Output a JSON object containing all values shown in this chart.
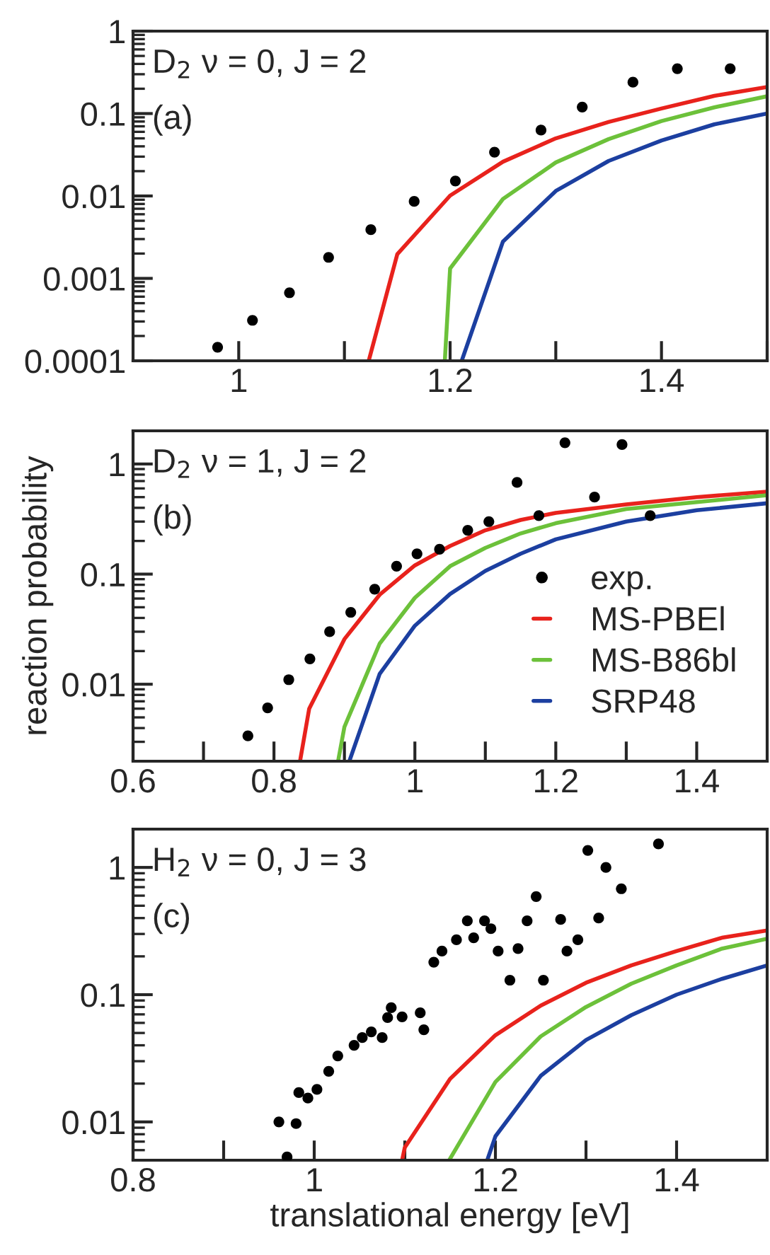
{
  "chart_data": [
    {
      "type": "scatter",
      "annotations": [
        "D$_{2}$ ν = 0, J = 2",
        "(a)"
      ],
      "log": "y",
      "xlim": [
        0.9,
        1.5
      ],
      "xticks": [
        1,
        {
          "value": 1.1,
          "label": null
        },
        1.2,
        {
          "value": 1.3,
          "label": null
        },
        1.4,
        {
          "value": 1.5,
          "label": null
        }
      ],
      "ylim": [
        0.0001,
        1
      ],
      "yticks": [
        0.0001,
        0.001,
        0.01,
        0.1,
        1
      ],
      "series": [
        {
          "marker": "circle",
          "color": "#000000",
          "x": [
            0.98,
            1.013,
            1.048,
            1.085,
            1.125,
            1.166,
            1.205,
            1.242,
            1.286,
            1.325,
            1.373,
            1.415,
            1.465
          ],
          "values": [
            0.000146,
            0.00031,
            0.00067,
            0.0018,
            0.0039,
            0.0086,
            0.0152,
            0.034,
            0.063,
            0.12,
            0.24,
            0.35,
            0.35
          ]
        },
        {
          "type": "line",
          "color": "#e8221c",
          "x": [
            1.123,
            1.15,
            1.2,
            1.25,
            1.3,
            1.35,
            1.4,
            1.45,
            1.5
          ],
          "values": [
            0.0001,
            0.00196,
            0.0101,
            0.026,
            0.05,
            0.079,
            0.115,
            0.164,
            0.21
          ]
        },
        {
          "type": "line",
          "color": "#6cc13a",
          "x": [
            1.195,
            1.2,
            1.25,
            1.3,
            1.35,
            1.4,
            1.45,
            1.5
          ],
          "values": [
            0.0001,
            0.00132,
            0.0092,
            0.0255,
            0.049,
            0.081,
            0.119,
            0.162
          ]
        },
        {
          "type": "line",
          "color": "#1c3fa0",
          "x": [
            1.211,
            1.25,
            1.3,
            1.35,
            1.4,
            1.45,
            1.5
          ],
          "values": [
            0.0001,
            0.0028,
            0.0115,
            0.0266,
            0.047,
            0.074,
            0.1
          ]
        }
      ]
    },
    {
      "type": "scatter",
      "annotations": [
        "D$_{2}$ ν = 1, J = 2",
        "(b)"
      ],
      "ylabel": "reaction probability",
      "log": "y",
      "legend": "center right",
      "xlim": [
        0.6,
        1.5
      ],
      "xticks": [
        0.6,
        {
          "value": 0.7,
          "label": null
        },
        0.8,
        {
          "value": 0.9,
          "label": null
        },
        1,
        {
          "value": 1.1,
          "label": null
        },
        1.2,
        {
          "value": 1.3,
          "label": null
        },
        1.4
      ],
      "ylim": [
        0.002,
        2
      ],
      "yticks": [
        0.01,
        0.1,
        1
      ],
      "series": [
        {
          "marker": "circle",
          "name": "exp.",
          "color": "#000000",
          "x": [
            0.763,
            0.791,
            0.821,
            0.851,
            0.879,
            0.909,
            0.943,
            0.974,
            1.003,
            1.035,
            1.075,
            1.105,
            1.145,
            1.176,
            1.213,
            1.255,
            1.294,
            1.334
          ],
          "values": [
            0.0034,
            0.0061,
            0.011,
            0.017,
            0.03,
            0.045,
            0.073,
            0.118,
            0.153,
            0.168,
            0.25,
            0.3,
            0.68,
            0.34,
            1.56,
            0.5,
            1.5,
            0.34
          ]
        },
        {
          "type": "line",
          "name": "MS-PBEl",
          "color": "#e8221c",
          "x": [
            0.837,
            0.85,
            0.9,
            0.95,
            1.0,
            1.05,
            1.1,
            1.15,
            1.2,
            1.3,
            1.4,
            1.5
          ],
          "values": [
            0.002,
            0.006,
            0.0257,
            0.065,
            0.12,
            0.18,
            0.25,
            0.31,
            0.36,
            0.43,
            0.5,
            0.56
          ]
        },
        {
          "type": "line",
          "name": "MS-B86bl",
          "color": "#6cc13a",
          "x": [
            0.891,
            0.9,
            0.95,
            1.0,
            1.05,
            1.1,
            1.15,
            1.2,
            1.3,
            1.4,
            1.5
          ],
          "values": [
            0.002,
            0.0041,
            0.0234,
            0.061,
            0.118,
            0.173,
            0.234,
            0.29,
            0.39,
            0.45,
            0.52
          ]
        },
        {
          "type": "line",
          "name": "SRP48",
          "color": "#1c3fa0",
          "x": [
            0.907,
            0.95,
            1.0,
            1.05,
            1.1,
            1.15,
            1.2,
            1.3,
            1.4,
            1.5
          ],
          "values": [
            0.002,
            0.0124,
            0.034,
            0.066,
            0.107,
            0.153,
            0.207,
            0.3,
            0.38,
            0.44
          ]
        }
      ]
    },
    {
      "type": "scatter",
      "annotations": [
        "H$_{2}$ ν = 0, J = 3",
        "(c)"
      ],
      "xlabel": "translational energy [eV]",
      "log": "y",
      "xlim": [
        0.8,
        1.5
      ],
      "xticks": [
        0.8,
        {
          "value": 0.9,
          "label": null
        },
        1,
        {
          "value": 1.1,
          "label": null
        },
        1.2,
        {
          "value": 1.3,
          "label": null
        },
        1.4
      ],
      "ylim": [
        0.005,
        2
      ],
      "yticks": [
        0.01,
        0.1,
        1
      ],
      "series": [
        {
          "marker": "circle",
          "color": "#000000",
          "x": [
            0.961,
            0.97,
            0.98,
            0.983,
            0.993,
            1.003,
            1.016,
            1.026,
            1.044,
            1.053,
            1.063,
            1.075,
            1.081,
            1.085,
            1.097,
            1.117,
            1.121,
            1.132,
            1.141,
            1.157,
            1.169,
            1.176,
            1.188,
            1.195,
            1.203,
            1.216,
            1.225,
            1.235,
            1.245,
            1.253,
            1.272,
            1.279,
            1.291,
            1.302,
            1.314,
            1.322,
            1.339,
            1.38
          ],
          "values": [
            0.01,
            0.0053,
            0.0097,
            0.017,
            0.0154,
            0.018,
            0.025,
            0.033,
            0.04,
            0.046,
            0.051,
            0.046,
            0.066,
            0.079,
            0.067,
            0.072,
            0.053,
            0.18,
            0.22,
            0.27,
            0.38,
            0.28,
            0.38,
            0.33,
            0.22,
            0.13,
            0.23,
            0.38,
            0.59,
            0.13,
            0.39,
            0.22,
            0.27,
            1.36,
            0.4,
            1.0,
            0.68,
            1.53
          ]
        },
        {
          "type": "line",
          "color": "#e8221c",
          "x": [
            1.097,
            1.1,
            1.15,
            1.2,
            1.25,
            1.3,
            1.35,
            1.4,
            1.45,
            1.5
          ],
          "values": [
            0.005,
            0.0063,
            0.0218,
            0.048,
            0.082,
            0.124,
            0.17,
            0.22,
            0.28,
            0.32
          ]
        },
        {
          "type": "line",
          "color": "#6cc13a",
          "x": [
            1.149,
            1.2,
            1.25,
            1.3,
            1.35,
            1.4,
            1.45,
            1.5
          ],
          "values": [
            0.005,
            0.0206,
            0.047,
            0.08,
            0.122,
            0.17,
            0.23,
            0.275
          ]
        },
        {
          "type": "line",
          "color": "#1c3fa0",
          "x": [
            1.191,
            1.2,
            1.25,
            1.3,
            1.35,
            1.4,
            1.45,
            1.5
          ],
          "values": [
            0.005,
            0.0077,
            0.023,
            0.044,
            0.069,
            0.1,
            0.133,
            0.17
          ]
        }
      ]
    }
  ]
}
